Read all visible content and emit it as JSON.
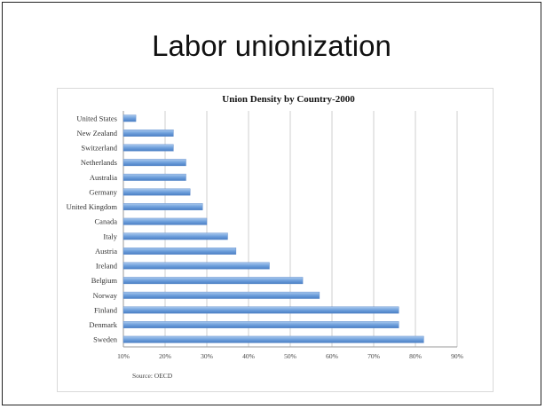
{
  "slide": {
    "title": "Labor unionization"
  },
  "chart_data": {
    "type": "bar",
    "orientation": "horizontal",
    "title": "Union Density by Country-2000",
    "categories": [
      "United States",
      "New Zealand",
      "Switzerland",
      "Netherlands",
      "Australia",
      "Germany",
      "United Kingdom",
      "Canada",
      "Italy",
      "Austria",
      "Ireland",
      "Belgium",
      "Norway",
      "Finland",
      "Denmark",
      "Sweden"
    ],
    "values": [
      13,
      22,
      22,
      25,
      25,
      26,
      29,
      30,
      35,
      37,
      45,
      53,
      57,
      76,
      76,
      82
    ],
    "xticks": [
      10,
      20,
      30,
      40,
      50,
      60,
      70,
      80,
      90
    ],
    "xtick_labels": [
      "10%",
      "20%",
      "30%",
      "40%",
      "50%",
      "60%",
      "70%",
      "80%",
      "90%"
    ],
    "xlim": [
      10,
      90
    ],
    "grid": true,
    "bar_color": "#6fa0dc",
    "source": "Source:  OECD"
  }
}
